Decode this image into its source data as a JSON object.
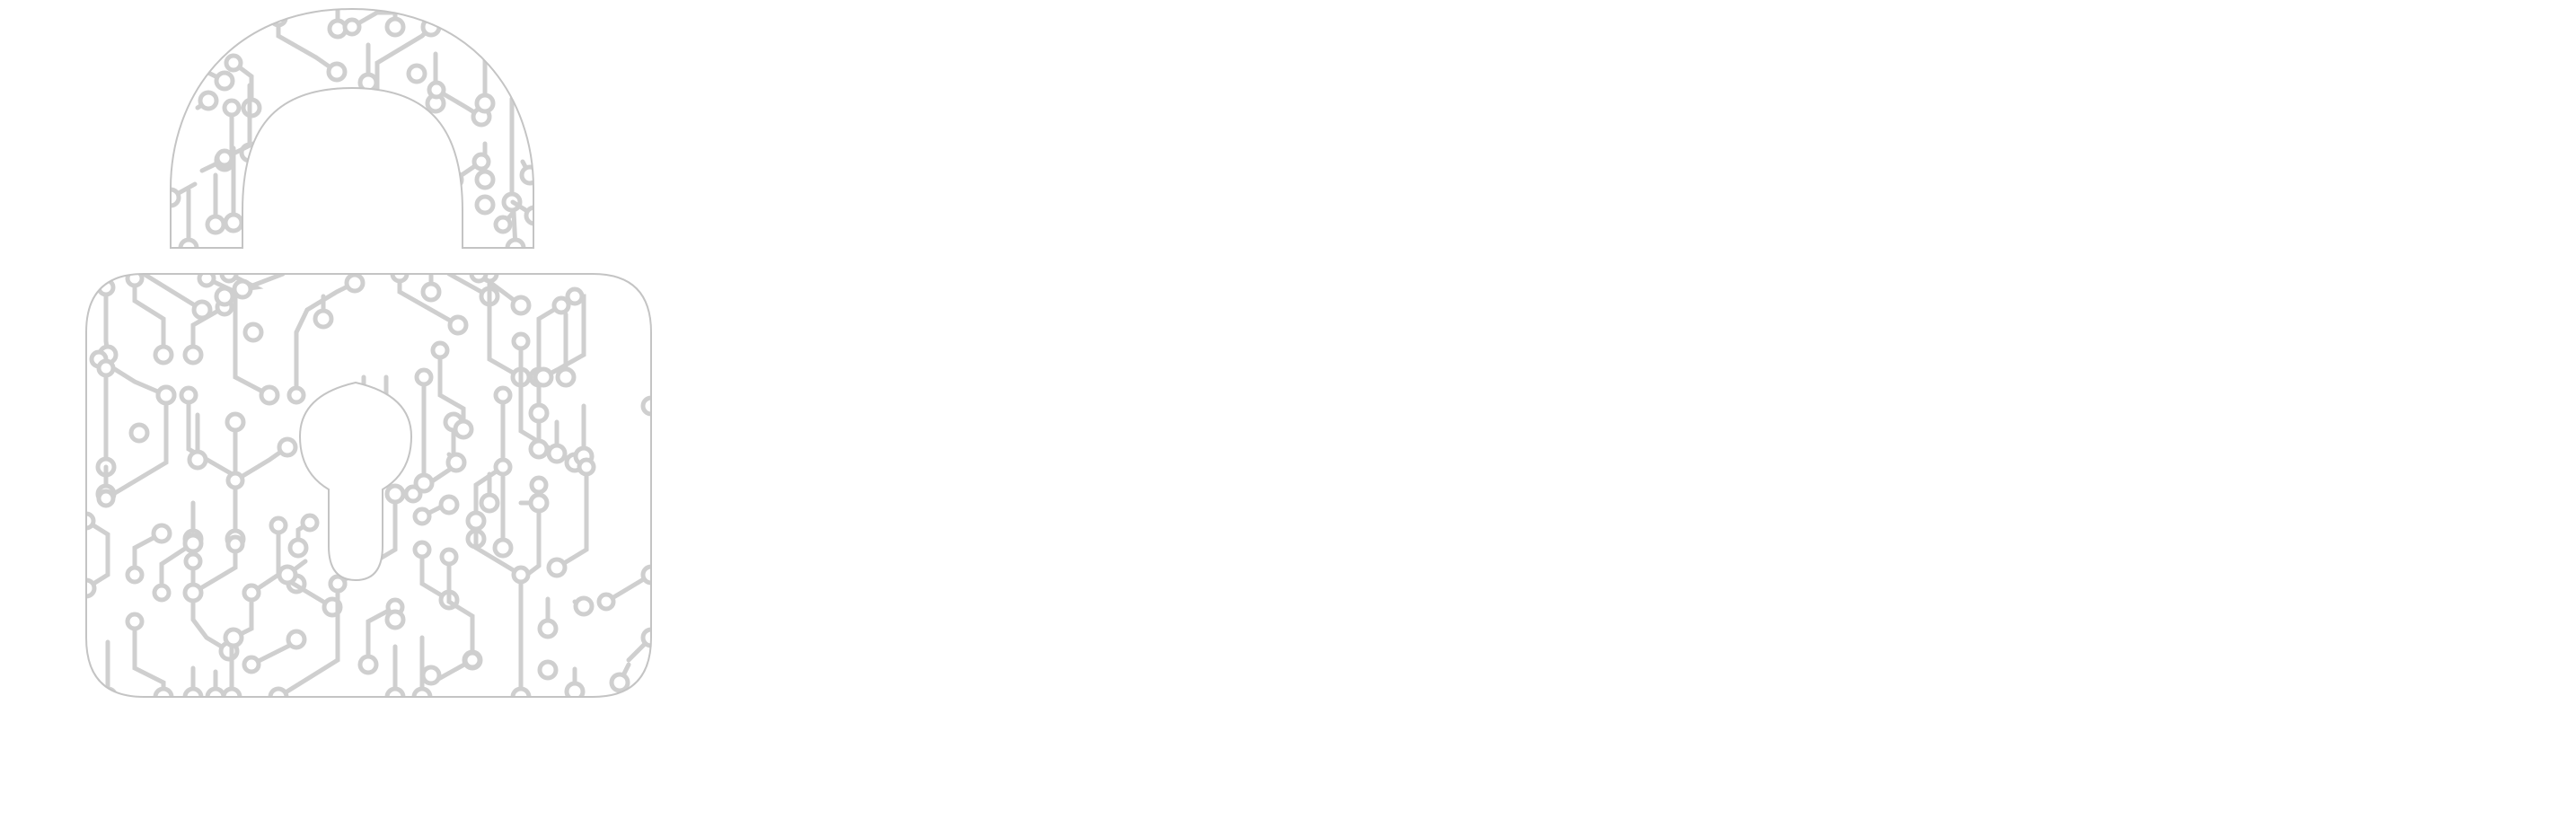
{
  "graphic": {
    "icon": "circuit-padlock-icon",
    "colors": {
      "background": "#ffffff",
      "trace": "#cfcfcf",
      "outline": "#c4c4c4"
    }
  }
}
